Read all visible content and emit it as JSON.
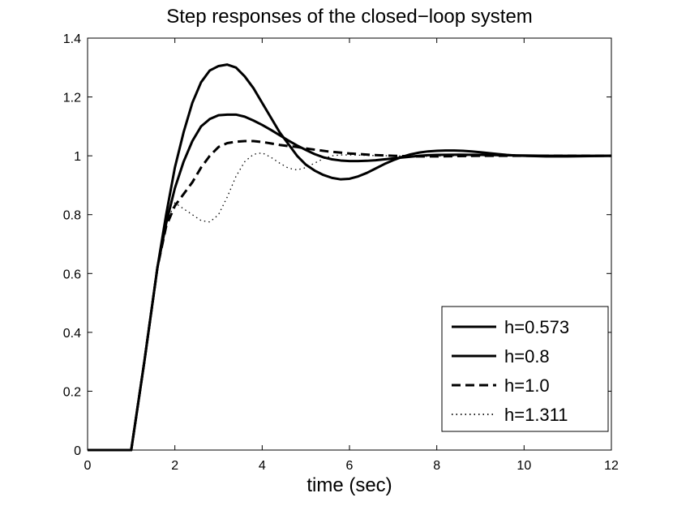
{
  "chart_data": {
    "type": "line",
    "title": "Step responses of the closed−loop system",
    "xlabel": "time (sec)",
    "ylabel": "",
    "xlim": [
      0,
      12
    ],
    "ylim": [
      0,
      1.4
    ],
    "xticks": [
      0,
      2,
      4,
      6,
      8,
      10,
      12
    ],
    "xtick_labels": [
      "0",
      "2",
      "4",
      "6",
      "8",
      "10",
      "12"
    ],
    "yticks": [
      0,
      0.2,
      0.4,
      0.6,
      0.8,
      1,
      1.2,
      1.4
    ],
    "ytick_labels": [
      "0",
      "0.2",
      "0.4",
      "0.6",
      "0.8",
      "1",
      "1.2",
      "1.4"
    ],
    "grid": false,
    "legend_position": "bottom-right",
    "series": [
      {
        "name": "h=0.573",
        "style": "solid",
        "x": [
          0,
          1,
          1.3,
          1.6,
          1.8,
          2.0,
          2.2,
          2.4,
          2.6,
          2.8,
          3.0,
          3.2,
          3.4,
          3.6,
          3.8,
          4.0,
          4.2,
          4.4,
          4.6,
          4.8,
          5.0,
          5.2,
          5.4,
          5.6,
          5.8,
          6.0,
          6.2,
          6.4,
          6.6,
          6.8,
          7.0,
          7.2,
          7.4,
          7.6,
          7.8,
          8.0,
          8.2,
          8.4,
          8.6,
          8.8,
          9.0,
          9.2,
          9.4,
          9.6,
          9.8,
          10.0,
          10.5,
          11.0,
          11.5,
          12.0
        ],
        "y": [
          0,
          0,
          0.3,
          0.62,
          0.8,
          0.96,
          1.08,
          1.18,
          1.25,
          1.29,
          1.305,
          1.31,
          1.3,
          1.27,
          1.23,
          1.18,
          1.13,
          1.08,
          1.04,
          1.0,
          0.97,
          0.95,
          0.935,
          0.925,
          0.92,
          0.922,
          0.93,
          0.942,
          0.957,
          0.972,
          0.985,
          0.996,
          1.005,
          1.011,
          1.015,
          1.017,
          1.018,
          1.018,
          1.017,
          1.015,
          1.012,
          1.009,
          1.006,
          1.003,
          1.001,
          1.0,
          0.998,
          0.998,
          0.999,
          1.0
        ]
      },
      {
        "name": "h=0.8",
        "style": "solid",
        "x": [
          0,
          1,
          1.3,
          1.6,
          1.8,
          2.0,
          2.2,
          2.4,
          2.6,
          2.8,
          3.0,
          3.2,
          3.4,
          3.6,
          3.8,
          4.0,
          4.2,
          4.4,
          4.6,
          4.8,
          5.0,
          5.2,
          5.4,
          5.6,
          5.8,
          6.0,
          6.2,
          6.4,
          6.6,
          6.8,
          7.0,
          7.2,
          7.4,
          7.6,
          7.8,
          8.0,
          8.5,
          9.0,
          9.5,
          10.0,
          10.5,
          11.0,
          11.5,
          12.0
        ],
        "y": [
          0,
          0,
          0.3,
          0.62,
          0.77,
          0.89,
          0.98,
          1.05,
          1.1,
          1.125,
          1.138,
          1.14,
          1.14,
          1.133,
          1.12,
          1.105,
          1.088,
          1.07,
          1.052,
          1.035,
          1.02,
          1.006,
          0.995,
          0.988,
          0.984,
          0.982,
          0.982,
          0.983,
          0.985,
          0.988,
          0.991,
          0.994,
          0.997,
          1.0,
          1.002,
          1.003,
          1.004,
          1.003,
          1.002,
          1.001,
          1.0,
          1.0,
          1.0,
          1.0
        ]
      },
      {
        "name": "h=1.0",
        "style": "dashed",
        "x": [
          0,
          1,
          1.3,
          1.6,
          1.8,
          2.0,
          2.2,
          2.4,
          2.6,
          2.8,
          3.0,
          3.2,
          3.4,
          3.6,
          3.8,
          4.0,
          4.2,
          4.4,
          4.6,
          4.8,
          5.0,
          5.5,
          6.0,
          6.5,
          7.0,
          7.5,
          8.0,
          8.5,
          9.0,
          9.5,
          10.0,
          10.5,
          11.0,
          11.5,
          12.0
        ],
        "y": [
          0,
          0,
          0.3,
          0.62,
          0.76,
          0.83,
          0.87,
          0.91,
          0.96,
          1.0,
          1.03,
          1.043,
          1.048,
          1.05,
          1.05,
          1.047,
          1.042,
          1.037,
          1.033,
          1.03,
          1.025,
          1.015,
          1.008,
          1.003,
          1.0,
          0.998,
          0.998,
          0.999,
          1.0,
          1.0,
          1.0,
          1.0,
          1.0,
          1.0,
          1.0
        ]
      },
      {
        "name": "h=1.311",
        "style": "dotted",
        "x": [
          0,
          1,
          1.3,
          1.6,
          1.8,
          2.0,
          2.2,
          2.4,
          2.6,
          2.8,
          3.0,
          3.2,
          3.4,
          3.6,
          3.8,
          4.0,
          4.2,
          4.4,
          4.6,
          4.8,
          5.0,
          5.2,
          5.4,
          5.6,
          5.8,
          6.0,
          6.5,
          7.0,
          7.5,
          8.0,
          8.5,
          9.0,
          10.0,
          11.0,
          12.0
        ],
        "y": [
          0,
          0,
          0.3,
          0.62,
          0.77,
          0.84,
          0.82,
          0.8,
          0.78,
          0.775,
          0.8,
          0.86,
          0.93,
          0.98,
          1.005,
          1.01,
          0.995,
          0.975,
          0.958,
          0.952,
          0.96,
          0.975,
          0.99,
          1.0,
          1.003,
          1.003,
          1.001,
          1.0,
          0.998,
          0.999,
          1.0,
          1.0,
          1.0,
          1.0,
          1.0
        ]
      }
    ]
  }
}
